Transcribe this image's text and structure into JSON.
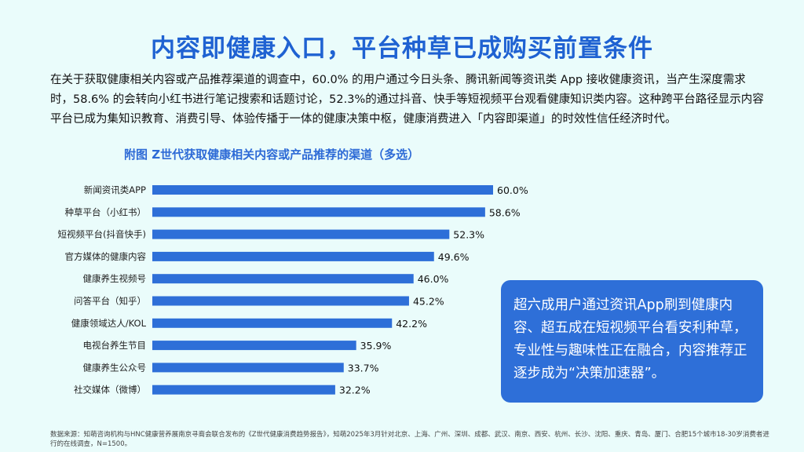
{
  "title": "内容即健康入口，平台种草已成购买前置条件",
  "intro": "在关于获取健康相关内容或产品推荐渠道的调查中，60.0% 的用户通过今日头条、腾讯新闻等资讯类 App 接收健康资讯，当产生深度需求时，58.6% 的会转向小红书进行笔记搜索和话题讨论，52.3%的通过抖音、快手等短视频平台观看健康知识类内容。这种跨平台路径显示内容平台已成为集知识教育、消费引导、体验传播于一体的健康决策中枢，健康消费进入「内容即渠道」的时效性信任经济时代。",
  "callout": "超六成用户通过资讯App刷到健康内容、超五成在短视频平台看安利种草，专业性与趣味性正在融合，内容推荐正逐步成为“决策加速器”。",
  "source": "数据来源：知萌咨询机构与HNC健康营养展南京寻裔会联合发布的《Z世代健康消费趋势报告》，知萌2025年3月针对北京、上海、广州、深圳、成都、武汉、南京、西安、杭州、长沙、沈阳、重庆、青岛、厦门、合肥15个城市18-30岁消费者进行的在线调查，N=1500。",
  "colors": {
    "bar": "#2e6fd8",
    "title": "#1f62d2",
    "background": "#eafcfb"
  },
  "chart_data": {
    "type": "bar",
    "orientation": "horizontal",
    "title": "附图  Z世代获取健康相关内容或产品推荐的渠道（多选）",
    "categories": [
      "新闻资讯类APP",
      "种草平台（小红书）",
      "短视频平台(抖音快手)",
      "官方媒体的健康内容",
      "健康养生视频号",
      "问答平台（知乎）",
      "健康领域达人/KOL",
      "电视台养生节目",
      "健康养生公众号",
      "社交媒体（微博）"
    ],
    "values": [
      60.0,
      58.6,
      52.3,
      49.6,
      46.0,
      45.2,
      42.2,
      35.9,
      33.7,
      32.2
    ],
    "labels": [
      "60.0%",
      "58.6%",
      "52.3%",
      "49.6%",
      "46.0%",
      "45.2%",
      "42.2%",
      "35.9%",
      "33.7%",
      "32.2%"
    ],
    "unit": "%"
  }
}
